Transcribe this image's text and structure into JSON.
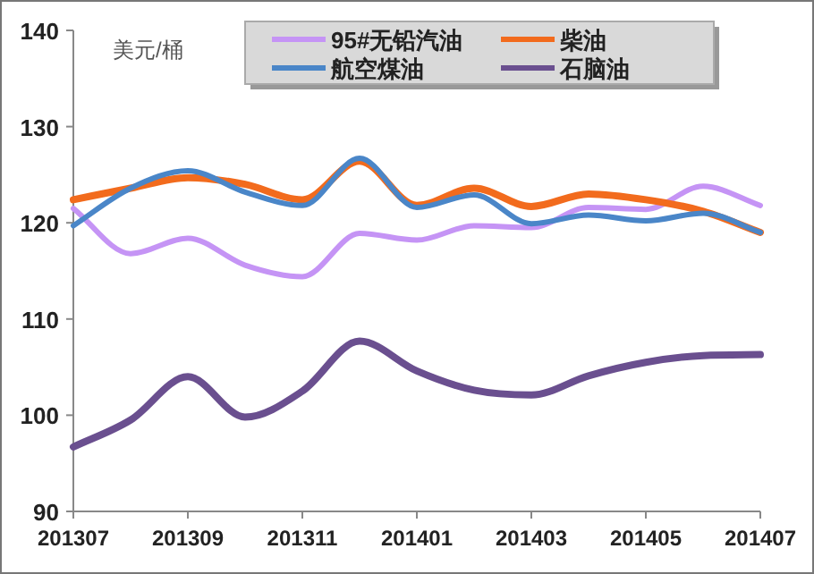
{
  "chart_data": {
    "type": "line",
    "ylabel": "美元/桶",
    "categories": [
      "201307",
      null,
      "201309",
      null,
      "201311",
      null,
      "201401",
      null,
      "201403",
      null,
      "201405",
      null,
      "201407"
    ],
    "series": [
      {
        "name": "95#无铅汽油",
        "color": "#c594f5",
        "values": [
          121.5,
          116.8,
          118.4,
          115.6,
          114.4,
          118.9,
          118.2,
          119.7,
          119.5,
          121.6,
          121.4,
          123.8,
          121.8
        ]
      },
      {
        "name": "柴油",
        "color": "#f26b1d",
        "values": [
          122.4,
          123.6,
          124.7,
          124.0,
          122.4,
          126.4,
          121.8,
          123.6,
          121.7,
          123.0,
          122.4,
          121.2,
          119.0
        ]
      },
      {
        "name": "航空煤油",
        "color": "#4a86c8",
        "values": [
          119.7,
          123.6,
          125.4,
          123.2,
          121.8,
          126.7,
          121.6,
          122.9,
          119.9,
          120.8,
          120.2,
          121.0,
          119.0
        ]
      },
      {
        "name": "石脑油",
        "color": "#6a4f8f",
        "values": [
          96.7,
          99.5,
          104.0,
          99.8,
          102.5,
          107.7,
          104.6,
          102.6,
          102.1,
          104.1,
          105.5,
          106.2,
          106.3
        ]
      }
    ],
    "ylim": [
      90,
      140
    ],
    "yticks": [
      90,
      100,
      110,
      120,
      130,
      140
    ],
    "grid": false,
    "legend": "top",
    "marker": "none",
    "line_style": "solid"
  }
}
